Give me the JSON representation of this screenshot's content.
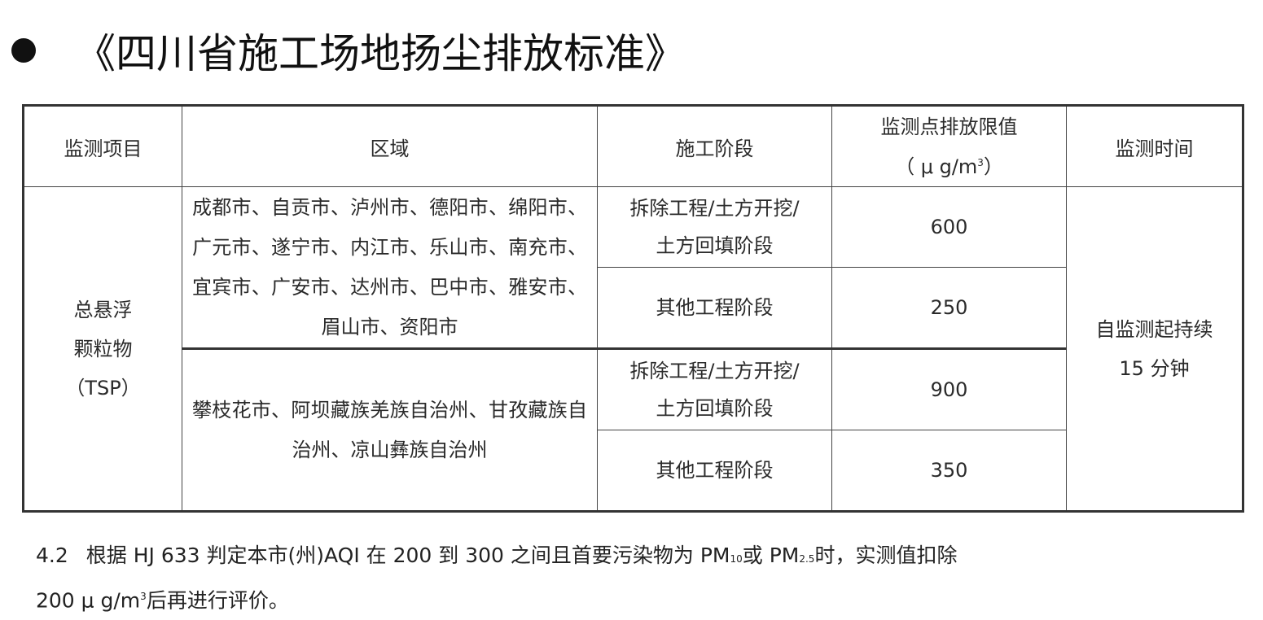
{
  "title": "《四川省施工场地扬尘排放标准》",
  "table": {
    "headers": [
      "监测项目",
      "区域",
      "施工阶段",
      "监测点排放限值",
      "监测时间"
    ],
    "limit_unit_prefix": "（ μ g/m",
    "limit_unit_sup": "3",
    "limit_unit_suffix": "）",
    "item": [
      "总悬浮",
      "颗粒物",
      "（TSP）"
    ],
    "time": [
      "自监测起持续",
      "15 分钟"
    ],
    "groups": [
      {
        "region": "成都市、自贡市、泸州市、德阳市、绵阳市、广元市、遂宁市、内江市、乐山市、南充市、宜宾市、广安市、达州市、巴中市、雅安市、眉山市、资阳市",
        "rows": [
          {
            "stage": [
              "拆除工程/土方开挖/",
              "土方回填阶段"
            ],
            "limit": "600"
          },
          {
            "stage": [
              "其他工程阶段"
            ],
            "limit": "250"
          }
        ]
      },
      {
        "region": "攀枝花市、阿坝藏族羌族自治州、甘孜藏族自治州、凉山彝族自治州",
        "rows": [
          {
            "stage": [
              "拆除工程/土方开挖/",
              "土方回填阶段"
            ],
            "limit": "900"
          },
          {
            "stage": [
              "其他工程阶段"
            ],
            "limit": "350"
          }
        ]
      }
    ]
  },
  "note": {
    "number": "4.2",
    "part1": "根据 HJ 633 判定本市(州)AQI 在 200 到 300 之间且首要污染物为 PM",
    "sub1": "10",
    "part2": "或 PM",
    "sub2": "2.5",
    "part3": "时，实测值扣除",
    "part4": "200 μ g/m",
    "sup": "3",
    "part5": "后再进行评价。"
  }
}
